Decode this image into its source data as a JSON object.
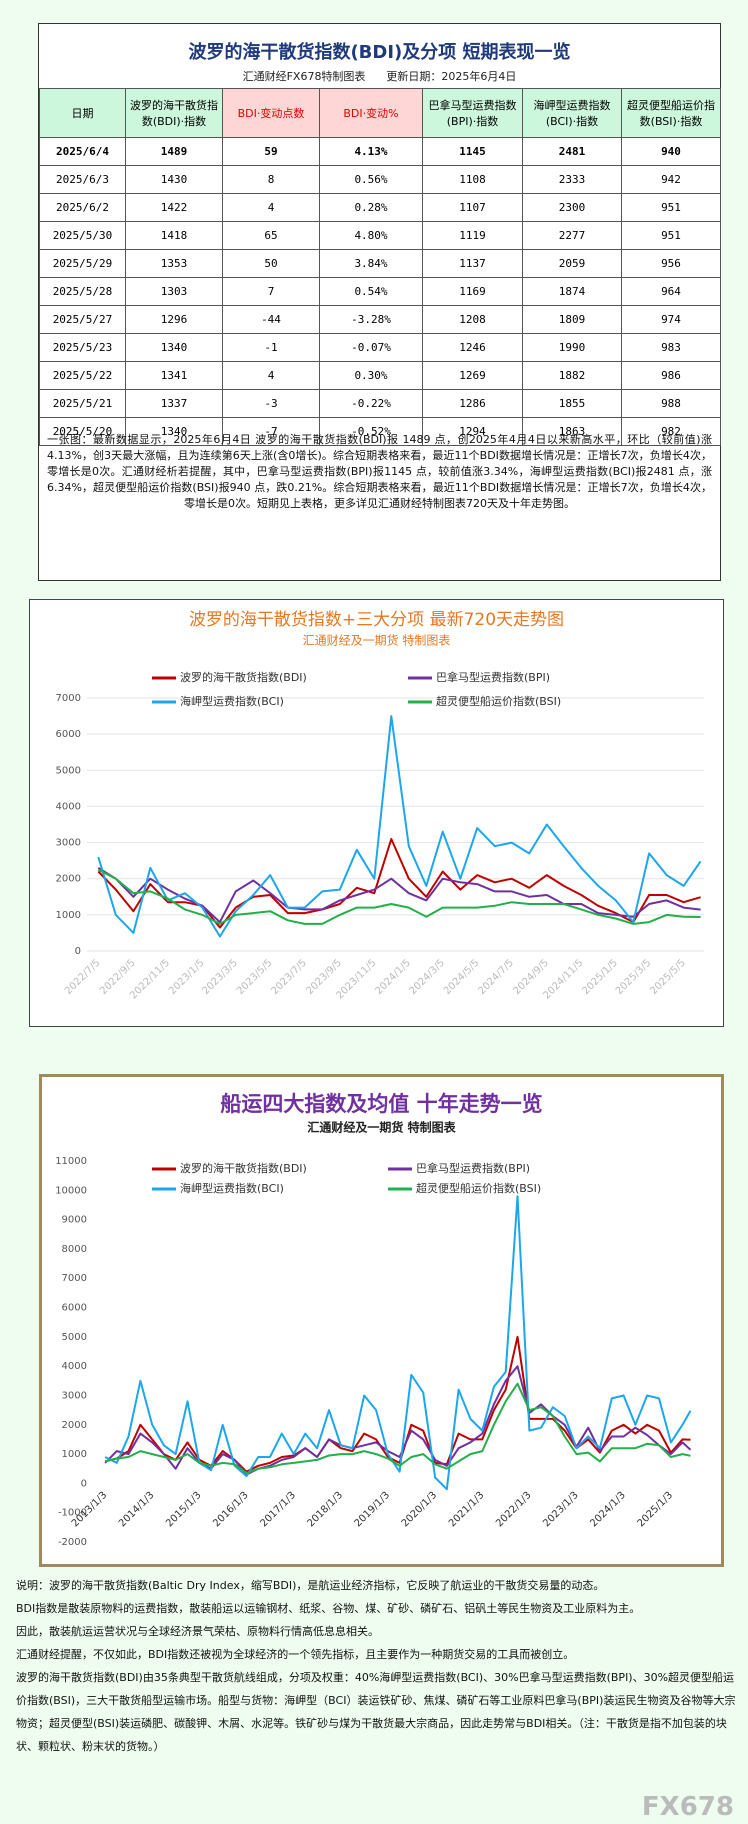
{
  "table": {
    "title": "波罗的海干散货指数(BDI)及分项  短期表现一览",
    "subtitle": "汇通财经FX678特制图表      更新日期：2025年6月4日",
    "header": [
      "日期",
      "波罗的海干散货指数(BDI)·指数",
      "BDI·变动点数",
      "BDI·变动%",
      "巴拿马型运费指数(BPI)·指数",
      "海岬型运费指数(BCI)·指数",
      "超灵便型船运价指数(BSI)·指数"
    ],
    "rows": [
      [
        "2025/6/4",
        "1489",
        "59",
        "4.13%",
        "1145",
        "2481",
        "940"
      ],
      [
        "2025/6/3",
        "1430",
        "8",
        "0.56%",
        "1108",
        "2333",
        "942"
      ],
      [
        "2025/6/2",
        "1422",
        "4",
        "0.28%",
        "1107",
        "2300",
        "951"
      ],
      [
        "2025/5/30",
        "1418",
        "65",
        "4.80%",
        "1119",
        "2277",
        "951"
      ],
      [
        "2025/5/29",
        "1353",
        "50",
        "3.84%",
        "1137",
        "2059",
        "956"
      ],
      [
        "2025/5/28",
        "1303",
        "7",
        "0.54%",
        "1169",
        "1874",
        "964"
      ],
      [
        "2025/5/27",
        "1296",
        "-44",
        "-3.28%",
        "1208",
        "1809",
        "974"
      ],
      [
        "2025/5/23",
        "1340",
        "-1",
        "-0.07%",
        "1246",
        "1990",
        "983"
      ],
      [
        "2025/5/22",
        "1341",
        "4",
        "0.30%",
        "1269",
        "1882",
        "986"
      ],
      [
        "2025/5/21",
        "1337",
        "-3",
        "-0.22%",
        "1286",
        "1855",
        "988"
      ],
      [
        "2025/5/20",
        "1340",
        "-7",
        "-0.52%",
        "1294",
        "1863",
        "982"
      ]
    ]
  },
  "summary": "一张图：最新数据显示，2025年6月4日 波罗的海干散货指数(BDI)报 1489 点，创2025年4月4日以来新高水平，环比（较前值)涨4.13%，创3天最大涨幅，且为连续第6天上涨(含0增长)。综合短期表格来看，最近11个BDI数据增长情况是：正增长7次，负增长4次，零增长是0次。汇通财经析若提醒，其中，巴拿马型运费指数(BPI)报1145 点，较前值涨3.34%，海岬型运费指数(BCI)报2481 点，涨6.34%，超灵便型船运价指数(BSI)报940 点，跌0.21%。综合短期表格来看，最近11个BDI数据增长情况是：正增长7次，负增长4次，零增长是0次。短期见上表格，更多详见汇通财经特制图表720天及十年走势图。",
  "chart_data": [
    {
      "type": "line",
      "title": "波罗的海干散货指数+三大分项  最新720天走势图",
      "subtitle": "汇通财经及一期货 特制图表",
      "grid": true,
      "x": [
        "2022/7/5",
        "2022/8/5",
        "2022/9/5",
        "2022/10/5",
        "2022/11/5",
        "2022/12/5",
        "2023/1/5",
        "2023/2/5",
        "2023/3/5",
        "2023/4/5",
        "2023/5/5",
        "2023/6/5",
        "2023/7/5",
        "2023/8/5",
        "2023/9/5",
        "2023/10/5",
        "2023/11/5",
        "2023/12/5",
        "2024/1/5",
        "2024/2/5",
        "2024/3/5",
        "2024/4/5",
        "2024/5/5",
        "2024/6/5",
        "2024/7/5",
        "2024/8/5",
        "2024/9/5",
        "2024/10/5",
        "2024/11/5",
        "2024/12/5",
        "2025/1/5",
        "2025/2/5",
        "2025/3/5",
        "2025/4/5",
        "2025/5/5",
        "2025/6/4"
      ],
      "xlim": [
        "2022/6/15",
        "2025/6/10"
      ],
      "xticks": [
        "2022/7/5",
        "2022/9/5",
        "2022/11/5",
        "2023/1/5",
        "2023/3/5",
        "2023/5/5",
        "2023/7/5",
        "2023/9/5",
        "2023/11/5",
        "2024/1/5",
        "2024/3/5",
        "2024/5/5",
        "2024/7/5",
        "2024/9/5",
        "2024/11/5",
        "2025/1/5",
        "2025/3/5",
        "2025/5/5"
      ],
      "ylim": [
        0,
        7000
      ],
      "yticks": [
        0,
        1000,
        2000,
        3000,
        4000,
        5000,
        6000,
        7000
      ],
      "series": [
        {
          "name": "波罗的海干散货指数(BDI)",
          "color": "#c00000",
          "values": [
            2200,
            1700,
            1100,
            1850,
            1350,
            1350,
            1250,
            650,
            1200,
            1500,
            1550,
            1050,
            1050,
            1150,
            1300,
            1750,
            1600,
            3100,
            2000,
            1500,
            2200,
            1700,
            2100,
            1900,
            2000,
            1750,
            2100,
            1800,
            1550,
            1250,
            1050,
            800,
            1550,
            1550,
            1350,
            1489
          ]
        },
        {
          "name": "巴拿马型运费指数(BPI)",
          "color": "#7030a0",
          "values": [
            2300,
            2000,
            1500,
            2000,
            1700,
            1450,
            1250,
            800,
            1650,
            1950,
            1600,
            1200,
            1150,
            1150,
            1400,
            1550,
            1700,
            2000,
            1600,
            1400,
            2000,
            1900,
            1850,
            1650,
            1650,
            1500,
            1550,
            1300,
            1300,
            1050,
            1000,
            950,
            1300,
            1400,
            1200,
            1145
          ]
        },
        {
          "name": "海岬型运费指数(BCI)",
          "color": "#1ca7ec",
          "values": [
            2600,
            1000,
            500,
            2300,
            1400,
            1600,
            1200,
            400,
            1100,
            1550,
            2100,
            1200,
            1200,
            1650,
            1700,
            2800,
            2000,
            6500,
            2900,
            1800,
            3300,
            2000,
            3400,
            2900,
            3000,
            2700,
            3500,
            2900,
            2300,
            1800,
            1400,
            800,
            2700,
            2100,
            1800,
            2481
          ]
        },
        {
          "name": "超灵便型船运价指数(BSI)",
          "color": "#22b04a",
          "values": [
            2250,
            2000,
            1600,
            1650,
            1450,
            1150,
            1000,
            750,
            1000,
            1050,
            1100,
            850,
            750,
            750,
            1000,
            1200,
            1200,
            1300,
            1200,
            950,
            1200,
            1200,
            1200,
            1250,
            1350,
            1300,
            1300,
            1300,
            1150,
            1000,
            900,
            750,
            800,
            1000,
            950,
            940
          ]
        }
      ]
    },
    {
      "type": "line",
      "title": "船运四大指数及均值 十年走势一览",
      "subtitle": "汇通财经及一期货 特制图表",
      "grid": false,
      "x": [
        "2013/1/3",
        "2013/4/3",
        "2013/7/3",
        "2013/10/3",
        "2014/1/3",
        "2014/4/3",
        "2014/7/3",
        "2014/10/3",
        "2015/1/3",
        "2015/4/3",
        "2015/7/3",
        "2015/10/3",
        "2016/1/3",
        "2016/4/3",
        "2016/7/3",
        "2016/10/3",
        "2017/1/3",
        "2017/4/3",
        "2017/7/3",
        "2017/10/3",
        "2018/1/3",
        "2018/4/3",
        "2018/7/3",
        "2018/10/3",
        "2019/1/3",
        "2019/4/3",
        "2019/7/3",
        "2019/10/3",
        "2020/1/3",
        "2020/4/3",
        "2020/7/3",
        "2020/10/3",
        "2021/1/3",
        "2021/4/3",
        "2021/7/3",
        "2021/10/3",
        "2022/1/3",
        "2022/4/3",
        "2022/7/3",
        "2022/10/3",
        "2023/1/3",
        "2023/4/3",
        "2023/7/3",
        "2023/10/3",
        "2024/1/3",
        "2024/4/3",
        "2024/7/3",
        "2024/10/3",
        "2025/1/3",
        "2025/4/3",
        "2025/6/4"
      ],
      "xlim": [
        "2012/10/1",
        "2025/8/1"
      ],
      "xticks": [
        "2013/1/3",
        "2014/1/3",
        "2015/1/3",
        "2016/1/3",
        "2017/1/3",
        "2018/1/3",
        "2019/1/3",
        "2020/1/3",
        "2021/1/3",
        "2022/1/3",
        "2023/1/3",
        "2024/1/3",
        "2025/1/3"
      ],
      "ylim": [
        -2000,
        11000
      ],
      "yticks": [
        -2000,
        -1000,
        0,
        1000,
        2000,
        3000,
        4000,
        5000,
        6000,
        7000,
        8000,
        9000,
        10000,
        11000
      ],
      "series": [
        {
          "name": "波罗的海干散货指数(BDI)",
          "color": "#c00000",
          "values": [
            750,
            850,
            1100,
            2000,
            1500,
            1000,
            800,
            1400,
            800,
            600,
            1100,
            800,
            400,
            600,
            700,
            900,
            950,
            1200,
            900,
            1500,
            1200,
            1100,
            1700,
            1500,
            900,
            700,
            2000,
            1800,
            700,
            650,
            1700,
            1500,
            1500,
            2500,
            3200,
            5000,
            2200,
            2200,
            2200,
            1800,
            1200,
            1500,
            1050,
            1800,
            2000,
            1700,
            2000,
            1800,
            1050,
            1500,
            1489
          ]
        },
        {
          "name": "巴拿马型运费指数(BPI)",
          "color": "#7030a0",
          "values": [
            700,
            1100,
            1000,
            1700,
            1400,
            1000,
            500,
            1200,
            700,
            500,
            1000,
            800,
            300,
            500,
            600,
            800,
            900,
            1200,
            900,
            1500,
            1300,
            1200,
            1300,
            1400,
            1100,
            900,
            1800,
            1500,
            800,
            600,
            1200,
            1400,
            1700,
            2700,
            3500,
            4000,
            2400,
            2700,
            2300,
            2000,
            1250,
            1900,
            1100,
            1600,
            1600,
            1900,
            1650,
            1300,
            1000,
            1400,
            1145
          ]
        },
        {
          "name": "海岬型运费指数(BCI)",
          "color": "#1ca7ec",
          "values": [
            900,
            700,
            1600,
            3500,
            2000,
            1300,
            1000,
            2800,
            700,
            450,
            2000,
            600,
            250,
            900,
            900,
            1700,
            1000,
            1700,
            1200,
            2500,
            1300,
            1200,
            3000,
            2500,
            1000,
            400,
            3700,
            3100,
            200,
            -200,
            3200,
            2200,
            1800,
            3300,
            3800,
            9800,
            1800,
            1900,
            2600,
            2300,
            1200,
            1600,
            1200,
            2900,
            3000,
            2000,
            3000,
            2900,
            1400,
            2000,
            2481
          ]
        },
        {
          "name": "超灵便型船运价指数(BSI)",
          "color": "#22b04a",
          "values": [
            750,
            850,
            900,
            1100,
            1000,
            900,
            800,
            1000,
            700,
            600,
            700,
            650,
            350,
            500,
            550,
            650,
            700,
            750,
            800,
            950,
            1000,
            1000,
            1100,
            1000,
            850,
            600,
            900,
            1000,
            650,
            500,
            750,
            1000,
            1100,
            2000,
            2800,
            3400,
            2500,
            2600,
            2300,
            1600,
            1000,
            1050,
            750,
            1200,
            1200,
            1200,
            1350,
            1300,
            900,
            1000,
            940
          ]
        }
      ]
    }
  ],
  "notes": [
    "说明：波罗的海干散货指数(Baltic Dry Index，缩写BDI)，是航运业经济指标，它反映了航运业的干散货交易量的动态。",
    "BDI指数是散装原物料的运费指数，散装船运以运输钢材、纸浆、谷物、煤、矿砂、磷矿石、铝矾土等民生物资及工业原料为主。",
    "因此，散装航运运营状况与全球经济景气荣枯、原物料行情高低息息相关。",
    "汇通财经提醒，不仅如此，BDI指数还被视为全球经济的一个领先指标，且主要作为一种期货交易的工具而被创立。",
    "波罗的海干散货指数(BDI)由35条典型干散货航线组成，分项及权重：40%海岬型运费指数(BCI)、30%巴拿马型运费指数(BPI)、30%超灵便型船运价指数(BSI)，三大干散货船型运输市场。船型与货物：海岬型（BCI）装运铁矿砂、焦煤、磷矿石等工业原料巴拿马(BPI)装运民生物资及谷物等大宗物资；超灵便型(BSI)装运磷肥、碳酸钾、木屑、水泥等。铁矿砂与煤为干散货最大宗商品，因此走势常与BDI相关。（注：干散货是指不加包装的块状、颗粒状、粉末状的货物。）"
  ],
  "watermark": "FX678"
}
